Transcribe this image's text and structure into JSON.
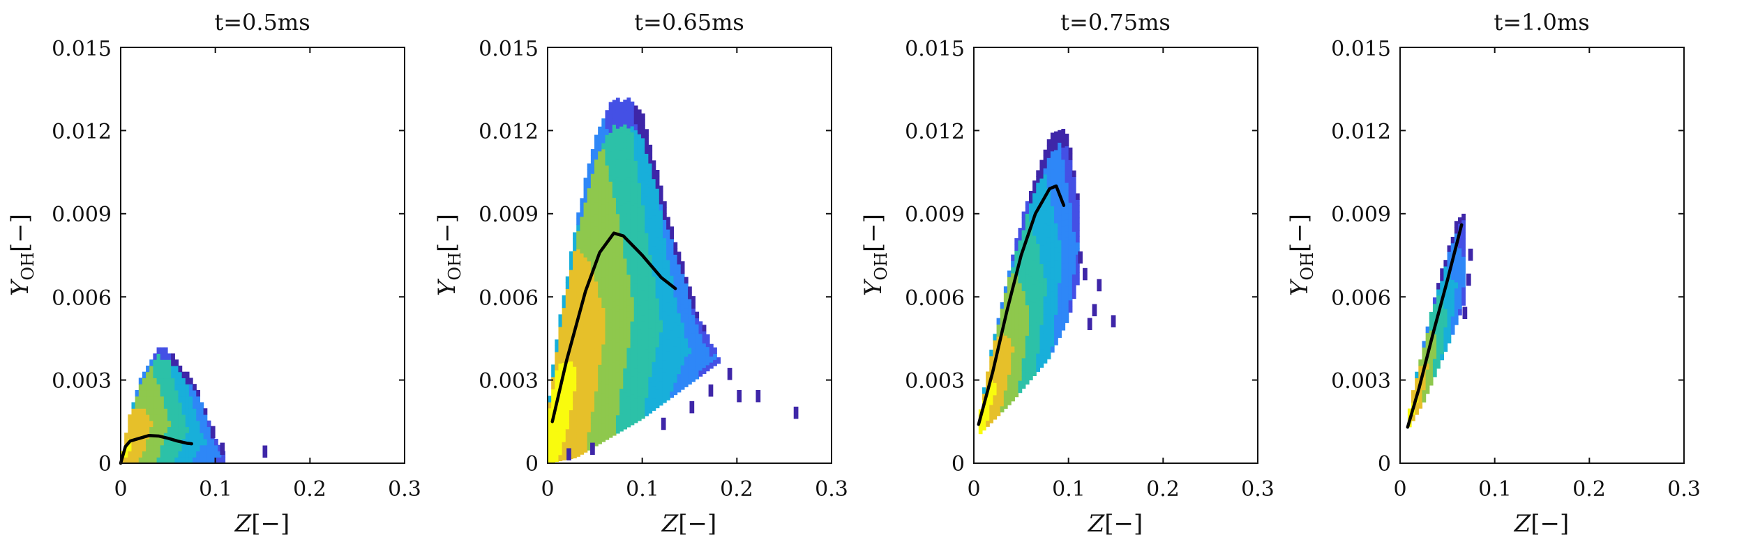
{
  "figure": {
    "colors": {
      "colormap": [
        "#3e26a8",
        "#4450e5",
        "#2e87f7",
        "#18afda",
        "#2cc1a8",
        "#8ec84d",
        "#e6c02a",
        "#f9fb0e"
      ],
      "mean_line": "#000000",
      "axes": "#111111"
    }
  },
  "chart_data": [
    {
      "type": "heatmap",
      "title": "t=0.5ms",
      "xlabel": "Z[−]",
      "ylabel": "Y_OH[−]",
      "xlim": [
        0,
        0.3
      ],
      "ylim": [
        0,
        0.015
      ],
      "xticks": [
        0,
        0.1,
        0.2,
        0.3
      ],
      "xtick_labels": [
        "0",
        "0.1",
        "0.2",
        "0.3"
      ],
      "yticks": [
        0,
        0.003,
        0.006,
        0.009,
        0.012,
        0.015
      ],
      "ytick_labels": [
        "0",
        "0.003",
        "0.006",
        "0.009",
        "0.012",
        "0.015"
      ],
      "grid": false,
      "density_envelope": {
        "upper": [
          [
            0,
            0.0
          ],
          [
            0.01,
            0.0018
          ],
          [
            0.02,
            0.0028
          ],
          [
            0.03,
            0.0036
          ],
          [
            0.04,
            0.0041
          ],
          [
            0.05,
            0.004
          ],
          [
            0.06,
            0.0036
          ],
          [
            0.07,
            0.0031
          ],
          [
            0.08,
            0.0026
          ],
          [
            0.09,
            0.0018
          ],
          [
            0.1,
            0.0008
          ],
          [
            0.11,
            0.0002
          ]
        ],
        "lower": [
          [
            0,
            0.0
          ],
          [
            0.11,
            0.0
          ]
        ],
        "stray_points": [
          [
            0.15,
            0.0002
          ],
          [
            0.105,
            0.0003
          ],
          [
            0.095,
            0.0009
          ]
        ]
      },
      "mean_curve": [
        [
          0.0,
          0.0
        ],
        [
          0.005,
          0.0006
        ],
        [
          0.01,
          0.0008
        ],
        [
          0.02,
          0.0009
        ],
        [
          0.03,
          0.001
        ],
        [
          0.04,
          0.00098
        ],
        [
          0.05,
          0.0009
        ],
        [
          0.06,
          0.0008
        ],
        [
          0.07,
          0.00072
        ],
        [
          0.075,
          0.0007
        ]
      ]
    },
    {
      "type": "heatmap",
      "title": "t=0.65ms",
      "xlabel": "Z[−]",
      "ylabel": "Y_OH[−]",
      "xlim": [
        0,
        0.3
      ],
      "ylim": [
        0,
        0.015
      ],
      "xticks": [
        0,
        0.1,
        0.2,
        0.3
      ],
      "xtick_labels": [
        "0",
        "0.1",
        "0.2",
        "0.3"
      ],
      "yticks": [
        0,
        0.003,
        0.006,
        0.009,
        0.012,
        0.015
      ],
      "ytick_labels": [
        "0",
        "0.003",
        "0.006",
        "0.009",
        "0.012",
        "0.015"
      ],
      "grid": false,
      "density_envelope": {
        "upper": [
          [
            0,
            0.0018
          ],
          [
            0.01,
            0.0045
          ],
          [
            0.02,
            0.0065
          ],
          [
            0.03,
            0.0085
          ],
          [
            0.04,
            0.0102
          ],
          [
            0.05,
            0.0115
          ],
          [
            0.06,
            0.0125
          ],
          [
            0.07,
            0.013
          ],
          [
            0.09,
            0.013
          ],
          [
            0.1,
            0.0125
          ],
          [
            0.11,
            0.0112
          ],
          [
            0.12,
            0.0098
          ],
          [
            0.13,
            0.0085
          ],
          [
            0.14,
            0.0074
          ],
          [
            0.15,
            0.0062
          ],
          [
            0.16,
            0.0052
          ],
          [
            0.17,
            0.0045
          ],
          [
            0.18,
            0.0038
          ]
        ],
        "lower": [
          [
            0,
            0.0
          ],
          [
            0.03,
            0.0002
          ],
          [
            0.06,
            0.0008
          ],
          [
            0.1,
            0.0016
          ],
          [
            0.14,
            0.0026
          ],
          [
            0.18,
            0.0036
          ]
        ],
        "stray_points": [
          [
            0.26,
            0.0016
          ],
          [
            0.2,
            0.0022
          ],
          [
            0.22,
            0.0022
          ],
          [
            0.19,
            0.003
          ],
          [
            0.17,
            0.0024
          ],
          [
            0.15,
            0.0018
          ],
          [
            0.12,
            0.0012
          ],
          [
            0.045,
            0.0003
          ],
          [
            0.02,
            0.0001
          ]
        ]
      },
      "mean_curve": [
        [
          0.005,
          0.0015
        ],
        [
          0.02,
          0.0037
        ],
        [
          0.04,
          0.0062
        ],
        [
          0.055,
          0.0076
        ],
        [
          0.07,
          0.0083
        ],
        [
          0.08,
          0.0082
        ],
        [
          0.1,
          0.0075
        ],
        [
          0.12,
          0.0067
        ],
        [
          0.135,
          0.0063
        ]
      ]
    },
    {
      "type": "heatmap",
      "title": "t=0.75ms",
      "xlabel": "Z[−]",
      "ylabel": "Y_OH[−]",
      "xlim": [
        0,
        0.3
      ],
      "ylim": [
        0,
        0.015
      ],
      "xticks": [
        0,
        0.1,
        0.2,
        0.3
      ],
      "xtick_labels": [
        "0",
        "0.1",
        "0.2",
        "0.3"
      ],
      "yticks": [
        0,
        0.003,
        0.006,
        0.009,
        0.012,
        0.015
      ],
      "ytick_labels": [
        "0",
        "0.003",
        "0.006",
        "0.009",
        "0.012",
        "0.015"
      ],
      "grid": false,
      "density_envelope": {
        "upper": [
          [
            0.005,
            0.0015
          ],
          [
            0.02,
            0.0043
          ],
          [
            0.04,
            0.0073
          ],
          [
            0.06,
            0.0098
          ],
          [
            0.08,
            0.0116
          ],
          [
            0.09,
            0.012
          ],
          [
            0.1,
            0.0118
          ],
          [
            0.11,
            0.0095
          ]
        ],
        "lower": [
          [
            0.005,
            0.001
          ],
          [
            0.04,
            0.0022
          ],
          [
            0.08,
            0.0038
          ],
          [
            0.1,
            0.0052
          ],
          [
            0.11,
            0.0065
          ]
        ],
        "stray_points": [
          [
            0.145,
            0.0049
          ],
          [
            0.125,
            0.0053
          ],
          [
            0.12,
            0.0048
          ],
          [
            0.115,
            0.0066
          ],
          [
            0.13,
            0.0062
          ],
          [
            0.11,
            0.0072
          ]
        ]
      },
      "mean_curve": [
        [
          0.005,
          0.0014
        ],
        [
          0.02,
          0.0033
        ],
        [
          0.035,
          0.0055
        ],
        [
          0.05,
          0.0075
        ],
        [
          0.065,
          0.009
        ],
        [
          0.08,
          0.0099
        ],
        [
          0.087,
          0.01
        ],
        [
          0.095,
          0.0093
        ]
      ]
    },
    {
      "type": "heatmap",
      "title": "t=1.0ms",
      "xlabel": "Z[−]",
      "ylabel": "Y_OH[−]",
      "xlim": [
        0,
        0.3
      ],
      "ylim": [
        0,
        0.015
      ],
      "xticks": [
        0,
        0.1,
        0.2,
        0.3
      ],
      "xtick_labels": [
        "0",
        "0.1",
        "0.2",
        "0.3"
      ],
      "yticks": [
        0,
        0.003,
        0.006,
        0.009,
        0.012,
        0.015
      ],
      "ytick_labels": [
        "0",
        "0.003",
        "0.006",
        "0.009",
        "0.012",
        "0.015"
      ],
      "grid": false,
      "density_envelope": {
        "upper": [
          [
            0.008,
            0.0016
          ],
          [
            0.02,
            0.0035
          ],
          [
            0.035,
            0.0058
          ],
          [
            0.05,
            0.0075
          ],
          [
            0.06,
            0.0086
          ],
          [
            0.068,
            0.0089
          ]
        ],
        "lower": [
          [
            0.008,
            0.0012
          ],
          [
            0.025,
            0.0022
          ],
          [
            0.04,
            0.0034
          ],
          [
            0.055,
            0.0046
          ],
          [
            0.068,
            0.0058
          ],
          [
            0.072,
            0.007
          ]
        ],
        "stray_points": [
          [
            0.072,
            0.0073
          ],
          [
            0.07,
            0.0064
          ],
          [
            0.066,
            0.0052
          ]
        ]
      },
      "mean_curve": [
        [
          0.008,
          0.0013
        ],
        [
          0.02,
          0.0027
        ],
        [
          0.035,
          0.0047
        ],
        [
          0.05,
          0.0066
        ],
        [
          0.065,
          0.0086
        ]
      ]
    }
  ]
}
